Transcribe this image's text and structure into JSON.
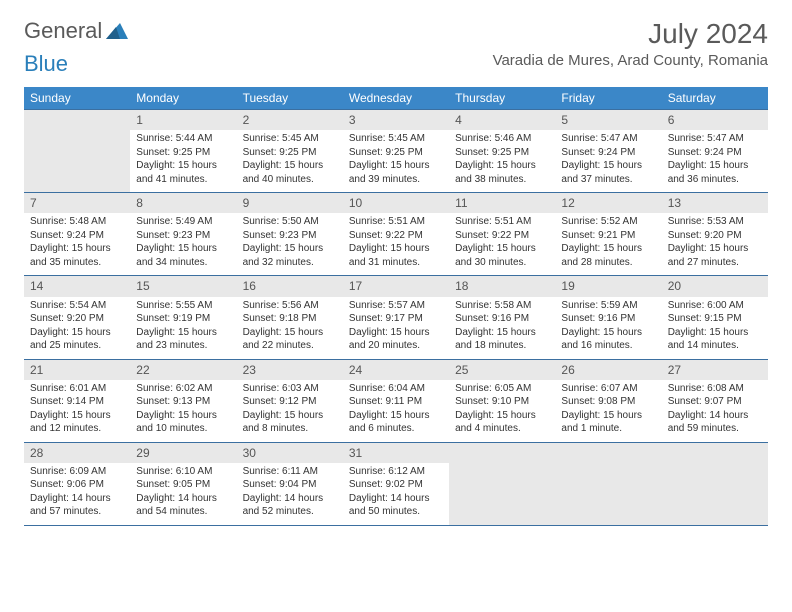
{
  "logo": {
    "text1": "General",
    "text2": "Blue"
  },
  "title": "July 2024",
  "location": "Varadia de Mures, Arad County, Romania",
  "colors": {
    "header_bg": "#3b87c8",
    "header_text": "#ffffff",
    "border": "#3b6fa0",
    "daynum_bg": "#e8e8e8",
    "text": "#333333",
    "logo_gray": "#5a5a5a",
    "logo_blue": "#2a7fba"
  },
  "weekdays": [
    "Sunday",
    "Monday",
    "Tuesday",
    "Wednesday",
    "Thursday",
    "Friday",
    "Saturday"
  ],
  "weeks": [
    [
      null,
      {
        "n": "1",
        "sr": "5:44 AM",
        "ss": "9:25 PM",
        "dl": "15 hours and 41 minutes."
      },
      {
        "n": "2",
        "sr": "5:45 AM",
        "ss": "9:25 PM",
        "dl": "15 hours and 40 minutes."
      },
      {
        "n": "3",
        "sr": "5:45 AM",
        "ss": "9:25 PM",
        "dl": "15 hours and 39 minutes."
      },
      {
        "n": "4",
        "sr": "5:46 AM",
        "ss": "9:25 PM",
        "dl": "15 hours and 38 minutes."
      },
      {
        "n": "5",
        "sr": "5:47 AM",
        "ss": "9:24 PM",
        "dl": "15 hours and 37 minutes."
      },
      {
        "n": "6",
        "sr": "5:47 AM",
        "ss": "9:24 PM",
        "dl": "15 hours and 36 minutes."
      }
    ],
    [
      {
        "n": "7",
        "sr": "5:48 AM",
        "ss": "9:24 PM",
        "dl": "15 hours and 35 minutes."
      },
      {
        "n": "8",
        "sr": "5:49 AM",
        "ss": "9:23 PM",
        "dl": "15 hours and 34 minutes."
      },
      {
        "n": "9",
        "sr": "5:50 AM",
        "ss": "9:23 PM",
        "dl": "15 hours and 32 minutes."
      },
      {
        "n": "10",
        "sr": "5:51 AM",
        "ss": "9:22 PM",
        "dl": "15 hours and 31 minutes."
      },
      {
        "n": "11",
        "sr": "5:51 AM",
        "ss": "9:22 PM",
        "dl": "15 hours and 30 minutes."
      },
      {
        "n": "12",
        "sr": "5:52 AM",
        "ss": "9:21 PM",
        "dl": "15 hours and 28 minutes."
      },
      {
        "n": "13",
        "sr": "5:53 AM",
        "ss": "9:20 PM",
        "dl": "15 hours and 27 minutes."
      }
    ],
    [
      {
        "n": "14",
        "sr": "5:54 AM",
        "ss": "9:20 PM",
        "dl": "15 hours and 25 minutes."
      },
      {
        "n": "15",
        "sr": "5:55 AM",
        "ss": "9:19 PM",
        "dl": "15 hours and 23 minutes."
      },
      {
        "n": "16",
        "sr": "5:56 AM",
        "ss": "9:18 PM",
        "dl": "15 hours and 22 minutes."
      },
      {
        "n": "17",
        "sr": "5:57 AM",
        "ss": "9:17 PM",
        "dl": "15 hours and 20 minutes."
      },
      {
        "n": "18",
        "sr": "5:58 AM",
        "ss": "9:16 PM",
        "dl": "15 hours and 18 minutes."
      },
      {
        "n": "19",
        "sr": "5:59 AM",
        "ss": "9:16 PM",
        "dl": "15 hours and 16 minutes."
      },
      {
        "n": "20",
        "sr": "6:00 AM",
        "ss": "9:15 PM",
        "dl": "15 hours and 14 minutes."
      }
    ],
    [
      {
        "n": "21",
        "sr": "6:01 AM",
        "ss": "9:14 PM",
        "dl": "15 hours and 12 minutes."
      },
      {
        "n": "22",
        "sr": "6:02 AM",
        "ss": "9:13 PM",
        "dl": "15 hours and 10 minutes."
      },
      {
        "n": "23",
        "sr": "6:03 AM",
        "ss": "9:12 PM",
        "dl": "15 hours and 8 minutes."
      },
      {
        "n": "24",
        "sr": "6:04 AM",
        "ss": "9:11 PM",
        "dl": "15 hours and 6 minutes."
      },
      {
        "n": "25",
        "sr": "6:05 AM",
        "ss": "9:10 PM",
        "dl": "15 hours and 4 minutes."
      },
      {
        "n": "26",
        "sr": "6:07 AM",
        "ss": "9:08 PM",
        "dl": "15 hours and 1 minute."
      },
      {
        "n": "27",
        "sr": "6:08 AM",
        "ss": "9:07 PM",
        "dl": "14 hours and 59 minutes."
      }
    ],
    [
      {
        "n": "28",
        "sr": "6:09 AM",
        "ss": "9:06 PM",
        "dl": "14 hours and 57 minutes."
      },
      {
        "n": "29",
        "sr": "6:10 AM",
        "ss": "9:05 PM",
        "dl": "14 hours and 54 minutes."
      },
      {
        "n": "30",
        "sr": "6:11 AM",
        "ss": "9:04 PM",
        "dl": "14 hours and 52 minutes."
      },
      {
        "n": "31",
        "sr": "6:12 AM",
        "ss": "9:02 PM",
        "dl": "14 hours and 50 minutes."
      },
      null,
      null,
      null
    ]
  ],
  "labels": {
    "sunrise": "Sunrise:",
    "sunset": "Sunset:",
    "daylight": "Daylight:"
  }
}
